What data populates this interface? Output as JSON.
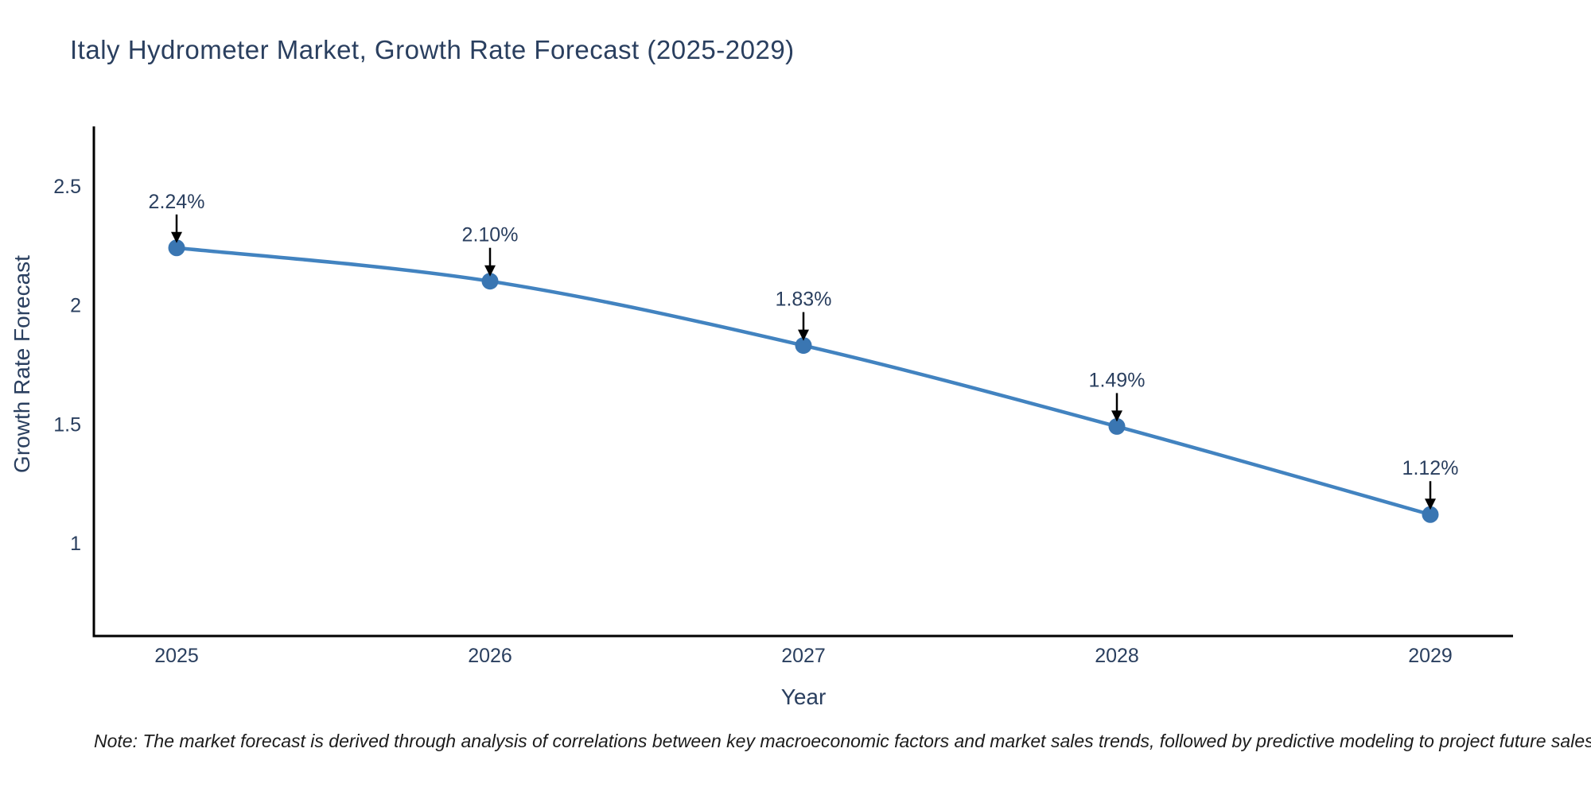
{
  "title": "Italy Hydrometer Market, Growth Rate Forecast (2025-2029)",
  "note": "Note: The market forecast is derived through analysis of correlations between key macroeconomic factors and market sales trends, followed by predictive modeling to project future sales",
  "chart_data": {
    "type": "line",
    "title": "Italy Hydrometer Market, Growth Rate Forecast (2025-2029)",
    "xlabel": "Year",
    "ylabel": "Growth Rate Forecast",
    "categories": [
      "2025",
      "2026",
      "2027",
      "2028",
      "2029"
    ],
    "series": [
      {
        "name": "Growth Rate Forecast",
        "values": [
          2.24,
          2.1,
          1.83,
          1.49,
          1.12
        ],
        "point_labels": [
          "2.24%",
          "2.10%",
          "1.83%",
          "1.49%",
          "1.12%"
        ]
      }
    ],
    "yticks": [
      1,
      1.5,
      2,
      2.5
    ],
    "ylim": [
      0.61,
      2.75
    ],
    "grid": false,
    "legend": "none",
    "colors": {
      "line": "#4283c0",
      "marker": "#3a76b2",
      "axis": "#000000",
      "tick_text": "#2a3f5f",
      "annotation_text": "#2a3f5f",
      "annotation_arrow": "#000000",
      "title_text": "#2a3f5f",
      "background": "#ffffff"
    }
  }
}
